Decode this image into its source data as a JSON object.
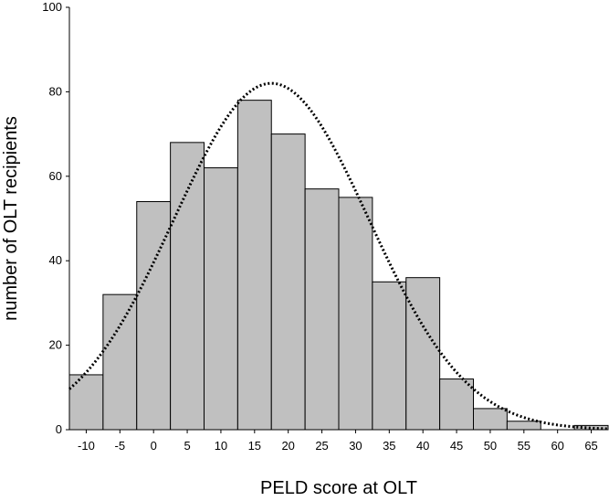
{
  "chart_data": {
    "type": "bar",
    "xlabel": "PELD score at OLT",
    "ylabel": "number of OLT recipients",
    "ylim": [
      0,
      100
    ],
    "xlim": [
      -12.5,
      67.5
    ],
    "bin_width": 5,
    "x_ticks": [
      -10,
      -5,
      0,
      5,
      10,
      15,
      20,
      25,
      30,
      35,
      40,
      45,
      50,
      55,
      60,
      65
    ],
    "y_ticks": [
      0,
      20,
      40,
      60,
      80,
      100
    ],
    "bins": [
      -10,
      -5,
      0,
      5,
      10,
      15,
      20,
      25,
      30,
      35,
      40,
      45,
      50,
      55,
      60,
      65
    ],
    "values": [
      13,
      32,
      54,
      68,
      62,
      78,
      70,
      57,
      55,
      35,
      36,
      12,
      5,
      2,
      0,
      1
    ],
    "fit_curve": {
      "style": "dotted",
      "distribution": "normal",
      "mean": 17.5,
      "peak": 82,
      "sd": 14.5
    },
    "bar_color": "#c0c0c0",
    "grid": false,
    "legend": "none"
  }
}
